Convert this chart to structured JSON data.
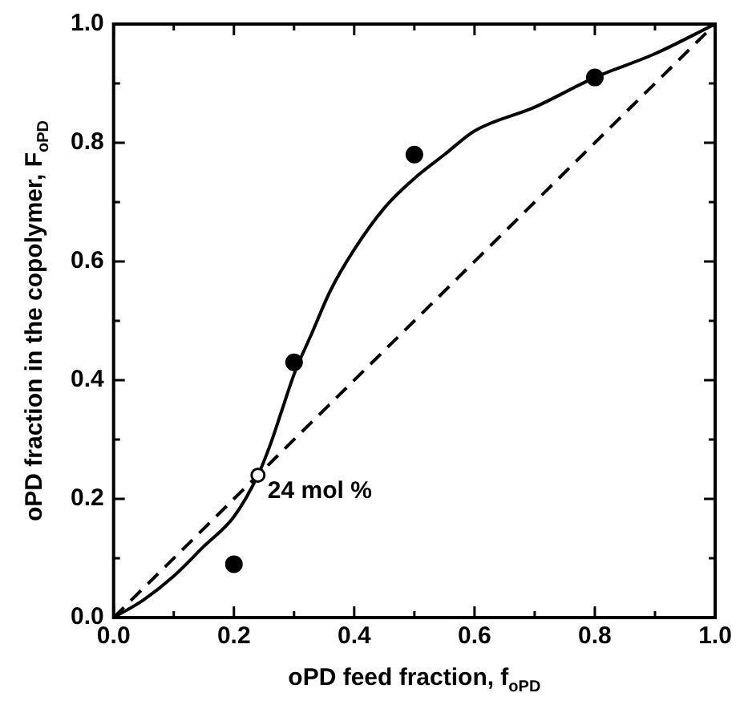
{
  "chart_data": {
    "type": "scatter",
    "xlabel": "oPD feed fraction, f$_{oPD}$",
    "ylabel": "oPD fraction in the copolymer, F$_{oPD}$",
    "xlim": [
      0,
      1
    ],
    "ylim": [
      0,
      1
    ],
    "xticks": [
      {
        "value": 0,
        "label": "0.0"
      },
      {
        "value": 0.1,
        "label": null
      },
      {
        "value": 0.2,
        "label": "0.2"
      },
      {
        "value": 0.3,
        "label": null
      },
      {
        "value": 0.4,
        "label": "0.4"
      },
      {
        "value": 0.5,
        "label": null
      },
      {
        "value": 0.6,
        "label": "0.6"
      },
      {
        "value": 0.7,
        "label": null
      },
      {
        "value": 0.8,
        "label": "0.8"
      },
      {
        "value": 0.9,
        "label": null
      },
      {
        "value": 1,
        "label": "1.0"
      }
    ],
    "yticks": [
      {
        "value": 0,
        "label": "0.0"
      },
      {
        "value": 0.1,
        "label": null
      },
      {
        "value": 0.2,
        "label": "0.2"
      },
      {
        "value": 0.3,
        "label": null
      },
      {
        "value": 0.4,
        "label": "0.4"
      },
      {
        "value": 0.5,
        "label": null
      },
      {
        "value": 0.6,
        "label": "0.6"
      },
      {
        "value": 0.7,
        "label": null
      },
      {
        "value": 0.8,
        "label": "0.8"
      },
      {
        "value": 0.9,
        "label": null
      },
      {
        "value": 1,
        "label": "1.0"
      }
    ],
    "grid": false,
    "legend": false,
    "series": [
      {
        "color": "#000000",
        "marker": "circle",
        "x": [
          0.2,
          0.3,
          0.5,
          0.8
        ],
        "values": [
          0.09,
          0.43,
          0.78,
          0.91
        ]
      },
      {
        "type": "line",
        "color": "#000000",
        "marker": "none",
        "line_style": "solid",
        "x": [
          0,
          0.05,
          0.1,
          0.15,
          0.2,
          0.24,
          0.26,
          0.28,
          0.3,
          0.33,
          0.36,
          0.4,
          0.45,
          0.5,
          0.55,
          0.6,
          0.7,
          0.8,
          0.9,
          1
        ],
        "values": [
          0,
          0.03,
          0.07,
          0.12,
          0.17,
          0.24,
          0.29,
          0.35,
          0.41,
          0.48,
          0.55,
          0.62,
          0.69,
          0.74,
          0.78,
          0.82,
          0.86,
          0.91,
          0.95,
          1
        ]
      },
      {
        "type": "line",
        "color": "#000000",
        "marker": "none",
        "line_style": "dashed",
        "x": [
          0,
          1
        ],
        "values": [
          0,
          1
        ]
      }
    ],
    "annotations": [
      {
        "text": "24 mol %",
        "x": 0.24,
        "y": 0.24
      }
    ]
  }
}
